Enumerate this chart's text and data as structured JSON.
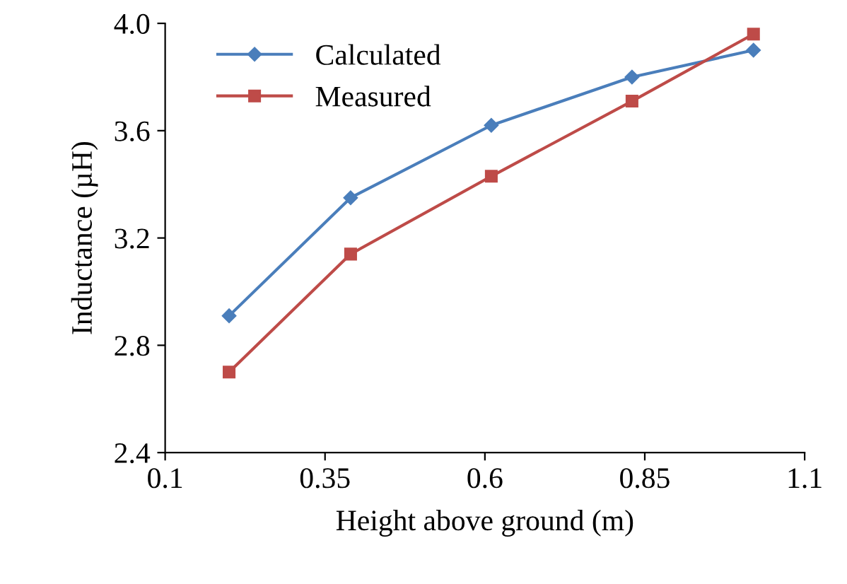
{
  "chart_data": {
    "type": "line",
    "xlabel": "Height above ground (m)",
    "ylabel": "Inductance (µH)",
    "x": [
      0.2,
      0.39,
      0.61,
      0.83,
      1.02
    ],
    "series": [
      {
        "name": "Calculated",
        "color": "#4a7ebb",
        "marker": "diamond",
        "values": [
          2.91,
          3.35,
          3.62,
          3.8,
          3.9
        ]
      },
      {
        "name": "Measured",
        "color": "#be4b48",
        "marker": "square",
        "values": [
          2.7,
          3.14,
          3.43,
          3.71,
          3.96
        ]
      }
    ],
    "xlim": [
      0.1,
      1.1
    ],
    "xticks": [
      0.1,
      0.35,
      0.6,
      0.85,
      1.1
    ],
    "ylim": [
      2.4,
      4.0
    ],
    "yticks": [
      2.4,
      2.8,
      3.2,
      3.6,
      {
        "value": 4,
        "label": "4.0"
      }
    ],
    "grid": false,
    "legend": "top left"
  }
}
